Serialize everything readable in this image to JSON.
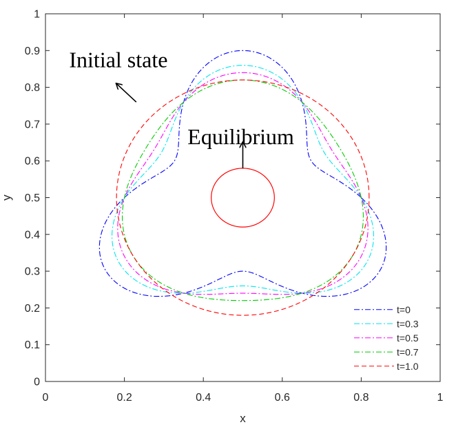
{
  "chart_data": {
    "type": "line",
    "xlabel": "x",
    "ylabel": "y",
    "xlim": [
      0,
      1
    ],
    "ylim": [
      0,
      1
    ],
    "xticks": [
      0,
      0.2,
      0.4,
      0.6,
      0.8,
      1
    ],
    "xtick_labels": [
      "0",
      "0.2",
      "0.4",
      "0.6",
      "0.8",
      "1"
    ],
    "yticks": [
      0,
      0.1,
      0.2,
      0.3,
      0.4,
      0.5,
      0.6,
      0.7,
      0.8,
      0.9,
      1
    ],
    "ytick_labels": [
      "0",
      "0.1",
      "0.2",
      "0.3",
      "0.4",
      "0.5",
      "0.6",
      "0.7",
      "0.8",
      "0.9",
      "1"
    ],
    "grid": false,
    "legend_position": "bottom-right",
    "series": [
      {
        "name": "t=0",
        "color": "#0000ff",
        "dash": "dash-dot",
        "center": [
          0.5,
          0.5
        ],
        "r_mean": 0.3,
        "r_amp": 0.1,
        "phase_deg": 90
      },
      {
        "name": "t=0.3",
        "color": "#00e5ee",
        "dash": "dash-dot",
        "center": [
          0.5,
          0.5
        ],
        "r_mean": 0.3,
        "r_amp": 0.06,
        "phase_deg": 90
      },
      {
        "name": "t=0.5",
        "color": "#ff00ff",
        "dash": "dash-dot",
        "center": [
          0.5,
          0.5
        ],
        "r_mean": 0.3,
        "r_amp": 0.04,
        "phase_deg": 90
      },
      {
        "name": "t=0.7",
        "color": "#00cc00",
        "dash": "dash-dot",
        "center": [
          0.5,
          0.5
        ],
        "r_mean": 0.3,
        "r_amp": 0.02,
        "phase_deg": 90
      },
      {
        "name": "t=1.0",
        "color": "#ff0000",
        "dash": "dashed",
        "center": [
          0.5,
          0.5
        ],
        "r_mean": 0.32,
        "r_amp": 0.0,
        "phase_deg": 90
      }
    ],
    "equilibrium": {
      "center": [
        0.5,
        0.5
      ],
      "radius": 0.08,
      "color": "#ff0000"
    },
    "annotations": [
      {
        "text": "Initial state",
        "x": 0.06,
        "y": 0.855,
        "arrow_from": [
          0.23,
          0.76
        ],
        "arrow_to": [
          0.18,
          0.81
        ]
      },
      {
        "text": "Equilibrium",
        "x": 0.36,
        "y": 0.645,
        "arrow_from": [
          0.5,
          0.58
        ],
        "arrow_to": [
          0.5,
          0.65
        ]
      }
    ]
  }
}
